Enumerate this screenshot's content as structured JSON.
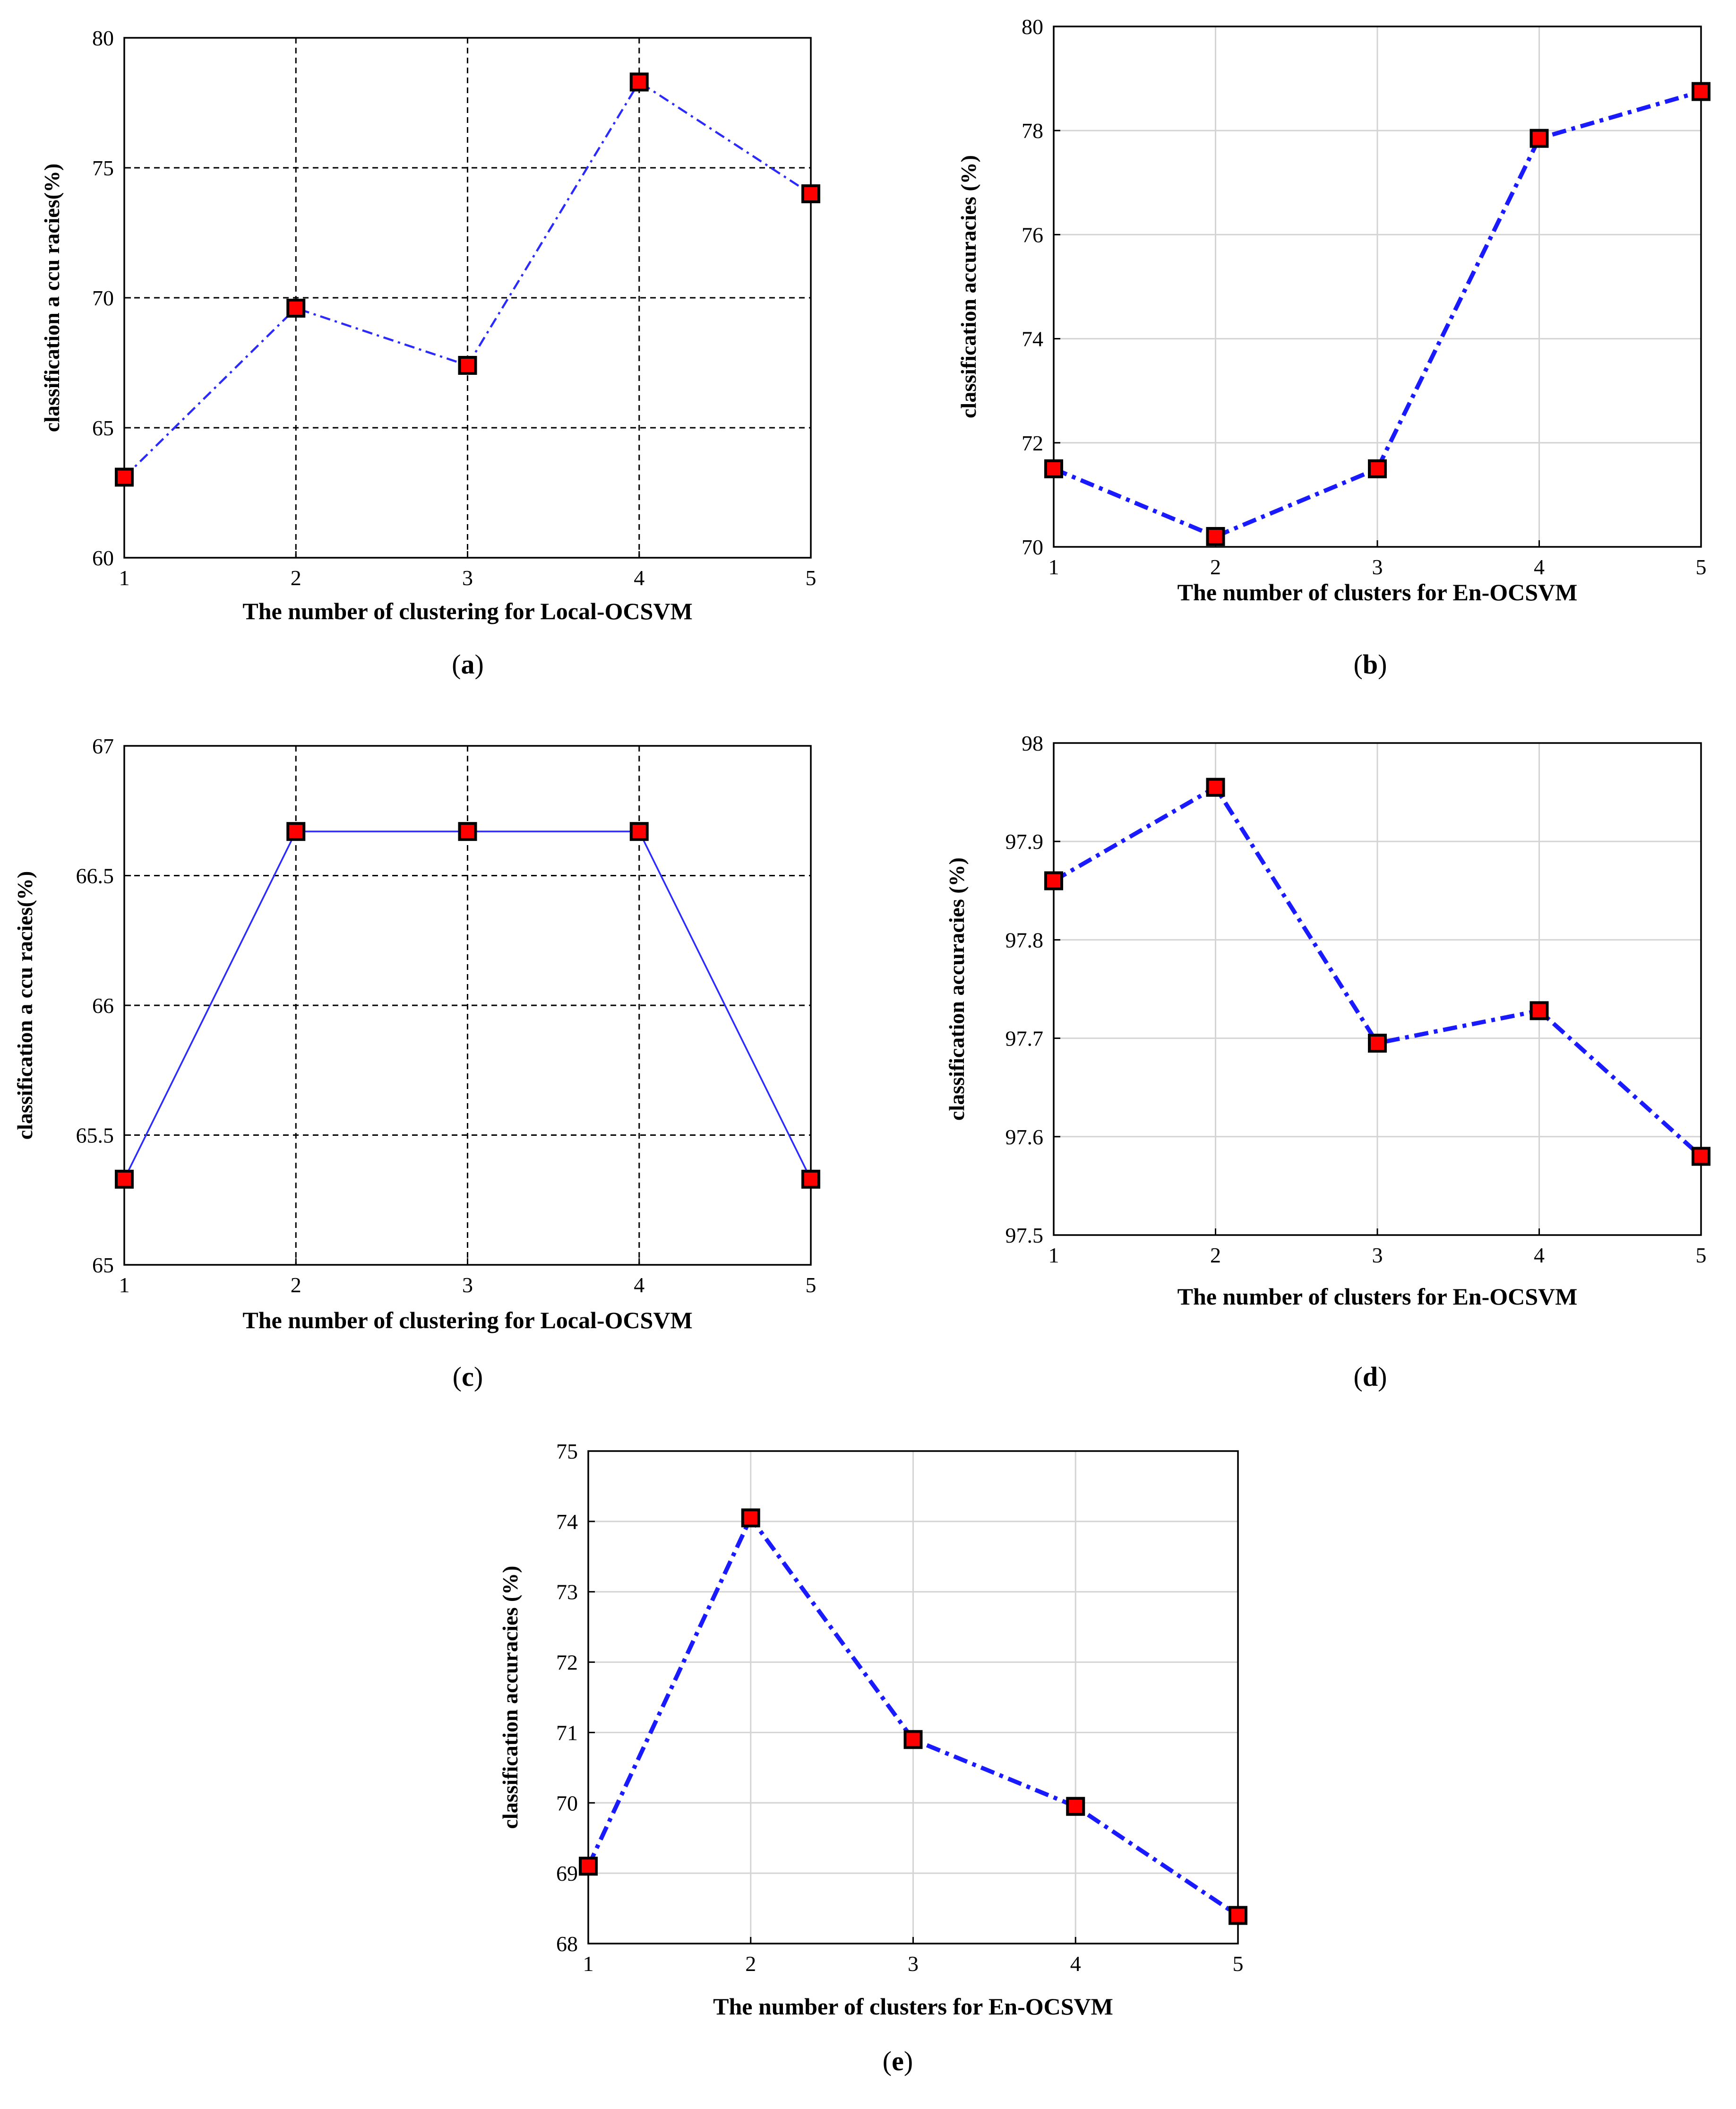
{
  "chart_data": [
    {
      "panel": "a",
      "type": "line",
      "caption_letter": "a",
      "x": [
        1,
        2,
        3,
        4,
        5
      ],
      "series": [
        {
          "name": "Local-OCSVM",
          "values": [
            63.1,
            69.6,
            67.4,
            78.3,
            74.0
          ]
        }
      ],
      "xlabel": "The number of clustering for Local-OCSVM",
      "ylabel": "classification a ccu racies(%)",
      "xlim": [
        1,
        5
      ],
      "ylim": [
        60,
        80
      ],
      "xticks": [
        1,
        2,
        3,
        4,
        5
      ],
      "yticks": [
        60,
        65,
        70,
        75,
        80
      ],
      "ytick_labels": [
        "60",
        "65",
        "70",
        "75",
        "80"
      ],
      "grid": "dashed",
      "line_style": "dash-dot",
      "line_color": "#2a2aff",
      "marker_color": "#ff0000"
    },
    {
      "panel": "b",
      "type": "line",
      "caption_letter": "b",
      "x": [
        1,
        2,
        3,
        4,
        5
      ],
      "series": [
        {
          "name": "En-OCSVM",
          "values": [
            71.5,
            70.2,
            71.5,
            77.85,
            78.75
          ]
        }
      ],
      "xlabel": "The number of clusters for En-OCSVM",
      "ylabel": "classification accuracies (%)",
      "xlim": [
        1,
        5
      ],
      "ylim": [
        70,
        80
      ],
      "xticks": [
        1,
        2,
        3,
        4,
        5
      ],
      "yticks": [
        70,
        72,
        74,
        76,
        78,
        80
      ],
      "ytick_labels": [
        "70",
        "72",
        "74",
        "76",
        "78",
        "80"
      ],
      "grid": "solid-light",
      "line_style": "dash-dot",
      "line_color": "#1a1aff",
      "marker_color": "#ff0000"
    },
    {
      "panel": "c",
      "type": "line",
      "caption_letter": "c",
      "x": [
        1,
        2,
        3,
        4,
        5
      ],
      "series": [
        {
          "name": "Local-OCSVM",
          "values": [
            65.33,
            66.67,
            66.67,
            66.67,
            65.33
          ]
        }
      ],
      "xlabel": "The number of clustering for Local-OCSVM",
      "ylabel": "classification a ccu racies(%)",
      "xlim": [
        1,
        5
      ],
      "ylim": [
        65,
        67
      ],
      "xticks": [
        1,
        2,
        3,
        4,
        5
      ],
      "yticks": [
        65,
        65.5,
        66,
        66.5,
        67
      ],
      "ytick_labels": [
        "65",
        "65.5",
        "66",
        "66.5",
        "67"
      ],
      "grid": "dashed",
      "line_style": "solid",
      "line_color": "#2a2aff",
      "marker_color": "#ff0000"
    },
    {
      "panel": "d",
      "type": "line",
      "caption_letter": "d",
      "x": [
        1,
        2,
        3,
        4,
        5
      ],
      "series": [
        {
          "name": "En-OCSVM",
          "values": [
            97.86,
            97.955,
            97.695,
            97.728,
            97.58
          ]
        }
      ],
      "xlabel": "The number of clusters for En-OCSVM",
      "ylabel": "classification accuracies (%)",
      "xlim": [
        1,
        5
      ],
      "ylim": [
        97.5,
        98
      ],
      "xticks": [
        1,
        2,
        3,
        4,
        5
      ],
      "yticks": [
        97.5,
        97.6,
        97.7,
        97.8,
        97.9,
        98
      ],
      "ytick_labels": [
        "97.5",
        "97.6",
        "97.7",
        "97.8",
        "97.9",
        "98"
      ],
      "grid": "solid-light",
      "line_style": "dash-dot",
      "line_color": "#1a1aff",
      "marker_color": "#ff0000"
    },
    {
      "panel": "e",
      "type": "line",
      "caption_letter": "e",
      "x": [
        1,
        2,
        3,
        4,
        5
      ],
      "series": [
        {
          "name": "En-OCSVM",
          "values": [
            69.1,
            74.05,
            70.9,
            69.95,
            68.4
          ]
        }
      ],
      "xlabel": "The number of clusters for En-OCSVM",
      "ylabel": "classification accuracies (%)",
      "xlim": [
        1,
        5
      ],
      "ylim": [
        68,
        75
      ],
      "xticks": [
        1,
        2,
        3,
        4,
        5
      ],
      "yticks": [
        68,
        69,
        70,
        71,
        72,
        73,
        74,
        75
      ],
      "ytick_labels": [
        "68",
        "69",
        "70",
        "71",
        "72",
        "73",
        "74",
        "75"
      ],
      "grid": "solid-light",
      "line_style": "dash-dot",
      "line_color": "#1a1aff",
      "marker_color": "#ff0000"
    }
  ]
}
